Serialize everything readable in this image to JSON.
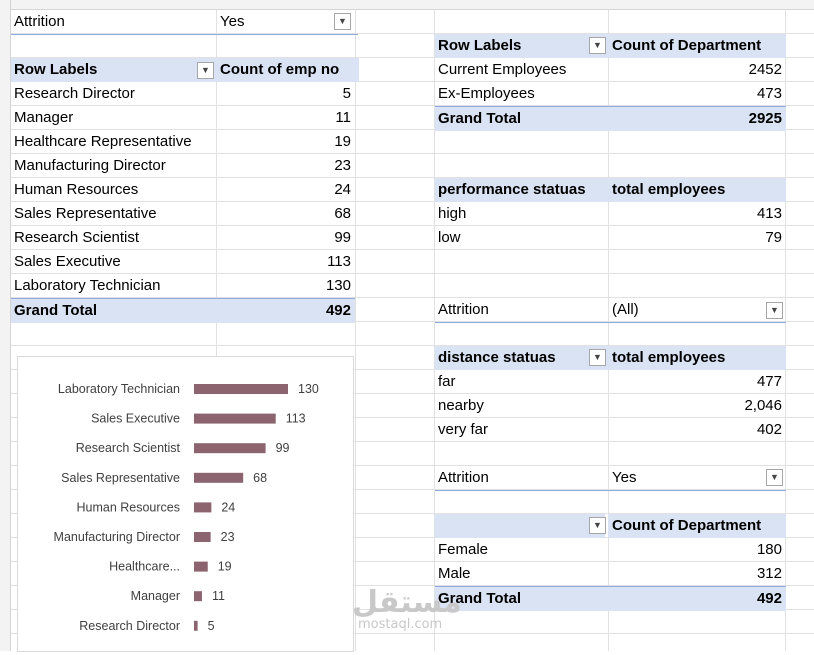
{
  "table1": {
    "filter_label": "Attrition",
    "filter_value": "Yes",
    "header_row": "Row Labels",
    "header_value": "Count of emp no",
    "rows": [
      {
        "label": "Research Director",
        "value": "5"
      },
      {
        "label": "Manager",
        "value": "11"
      },
      {
        "label": "Healthcare Representative",
        "value": "19"
      },
      {
        "label": "Manufacturing Director",
        "value": "23"
      },
      {
        "label": "Human Resources",
        "value": "24"
      },
      {
        "label": "Sales Representative",
        "value": "68"
      },
      {
        "label": "Research Scientist",
        "value": "99"
      },
      {
        "label": "Sales Executive",
        "value": "113"
      },
      {
        "label": "Laboratory Technician",
        "value": "130"
      }
    ],
    "total_label": "Grand Total",
    "total_value": "492"
  },
  "table2": {
    "header_row": "Row Labels",
    "header_value": "Count of Department",
    "rows": [
      {
        "label": "Current Employees",
        "value": "2452"
      },
      {
        "label": "Ex-Employees",
        "value": "473"
      }
    ],
    "total_label": "Grand Total",
    "total_value": "2925"
  },
  "table3": {
    "header_row": "performance statuas",
    "header_value": "total employees",
    "rows": [
      {
        "label": "high",
        "value": "413"
      },
      {
        "label": "low",
        "value": "79"
      }
    ]
  },
  "table4": {
    "filter_label": "Attrition",
    "filter_value": "(All)",
    "header_row": "distance statuas",
    "header_value": "total employees",
    "rows": [
      {
        "label": "far",
        "value": "477"
      },
      {
        "label": "nearby",
        "value": "2,046"
      },
      {
        "label": "very far",
        "value": "402"
      }
    ]
  },
  "table5": {
    "filter_label": "Attrition",
    "filter_value": "Yes",
    "header_value": "Count of Department",
    "rows": [
      {
        "label": "Female",
        "value": "180"
      },
      {
        "label": "Male",
        "value": "312"
      }
    ],
    "total_label": "Grand Total",
    "total_value": "492"
  },
  "chart_data": {
    "type": "bar",
    "orientation": "horizontal",
    "categories": [
      "Laboratory Technician",
      "Sales Executive",
      "Research Scientist",
      "Sales Representative",
      "Human Resources",
      "Manufacturing Director",
      "Healthcare...",
      "Manager",
      "Research Director"
    ],
    "values": [
      130,
      113,
      99,
      68,
      24,
      23,
      19,
      11,
      5
    ],
    "bar_color": "#8b6470",
    "xlim": [
      0,
      130
    ],
    "grid": false,
    "legend": "none"
  },
  "watermark": {
    "arabic": "مستقل",
    "latin": "mostaql.com"
  },
  "colors": {
    "pivot_header": "#dae3f3",
    "grid": "#e1e1e1"
  }
}
